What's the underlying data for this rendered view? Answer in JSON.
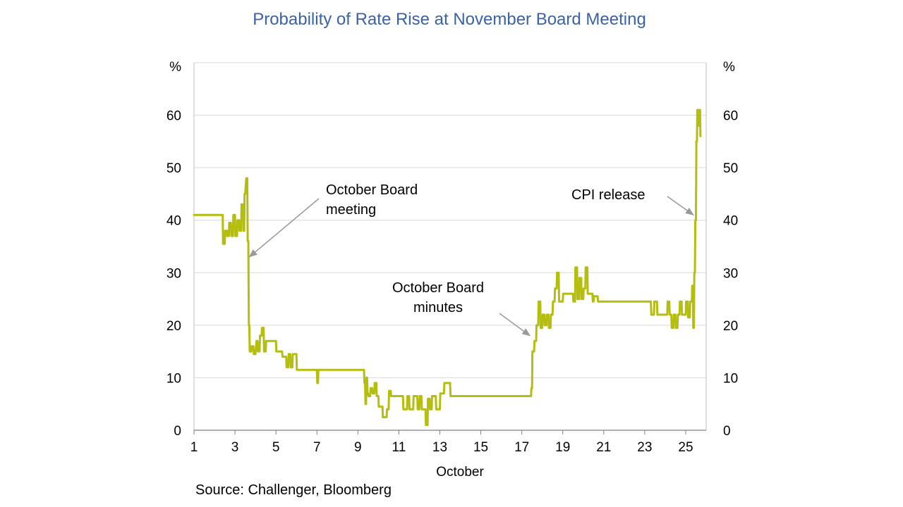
{
  "chart_data": {
    "type": "line",
    "title": "Probability of Rate Rise at November Board Meeting",
    "xlabel": "October",
    "ylabel_left": "%",
    "ylabel_right": "%",
    "xlim": [
      1,
      26
    ],
    "ylim": [
      0,
      70
    ],
    "x_ticks": [
      1,
      3,
      5,
      7,
      9,
      11,
      13,
      15,
      17,
      19,
      21,
      23,
      25
    ],
    "x_tick_labels": [
      "1",
      "3",
      "5",
      "7",
      "9",
      "11",
      "13",
      "15",
      "17",
      "19",
      "21",
      "23",
      "25"
    ],
    "y_ticks": [
      0,
      10,
      20,
      30,
      40,
      50,
      60
    ],
    "y_tick_labels": [
      "0",
      "10",
      "20",
      "30",
      "40",
      "50",
      "60"
    ],
    "grid": true,
    "color": "#b5bd0e",
    "series": [
      {
        "name": "Probability of rate rise",
        "x": [
          1,
          2.4,
          2.42,
          2.5,
          2.52,
          2.6,
          2.62,
          2.7,
          2.72,
          2.8,
          2.82,
          2.9,
          2.92,
          3.0,
          3.02,
          3.1,
          3.12,
          3.2,
          3.22,
          3.3,
          3.32,
          3.4,
          3.42,
          3.45,
          3.47,
          3.5,
          3.55,
          3.6,
          3.62,
          3.65,
          3.68,
          3.7,
          3.72,
          3.8,
          3.82,
          3.9,
          3.92,
          4.0,
          4.05,
          4.1,
          4.12,
          4.2,
          4.22,
          4.3,
          4.32,
          4.4,
          4.42,
          4.5,
          4.52,
          5.0,
          5.02,
          5.3,
          5.32,
          5.5,
          5.52,
          5.6,
          5.62,
          5.7,
          5.72,
          5.8,
          5.82,
          6.0,
          6.02,
          7.0,
          7.02,
          7.05,
          7.07,
          9.3,
          9.32,
          9.35,
          9.37,
          9.4,
          9.42,
          9.45,
          9.47,
          9.5,
          9.52,
          9.6,
          9.62,
          9.7,
          9.72,
          9.8,
          9.82,
          9.9,
          9.92,
          10.0,
          10.02,
          10.2,
          10.22,
          10.4,
          10.42,
          10.5,
          10.52,
          10.6,
          10.62,
          11.2,
          11.22,
          11.4,
          11.42,
          11.5,
          11.52,
          11.7,
          11.72,
          11.9,
          11.92,
          12.0,
          12.02,
          12.1,
          12.12,
          12.3,
          12.32,
          12.4,
          12.42,
          12.5,
          12.52,
          12.6,
          12.62,
          12.8,
          12.82,
          13.0,
          13.02,
          13.2,
          13.22,
          13.5,
          13.52,
          17.45,
          17.47,
          17.5,
          17.52,
          17.6,
          17.62,
          17.7,
          17.72,
          17.8,
          17.82,
          17.9,
          17.92,
          18.0,
          18.02,
          18.1,
          18.12,
          18.2,
          18.22,
          18.3,
          18.32,
          18.4,
          18.42,
          18.5,
          18.52,
          18.6,
          18.62,
          18.7,
          18.72,
          18.8,
          18.82,
          19.0,
          19.02,
          19.5,
          19.52,
          19.6,
          19.62,
          19.7,
          19.72,
          19.8,
          19.82,
          19.9,
          19.92,
          20.0,
          20.02,
          20.1,
          20.12,
          20.2,
          20.22,
          20.45,
          20.47,
          20.5,
          20.52,
          20.7,
          20.72,
          23.3,
          23.32,
          23.45,
          23.47,
          23.6,
          23.62,
          24.1,
          24.12,
          24.2,
          24.22,
          24.3,
          24.32,
          24.4,
          24.42,
          24.5,
          24.52,
          24.6,
          24.62,
          24.7,
          24.72,
          24.8,
          24.82,
          25.0,
          25.02,
          25.1,
          25.12,
          25.2,
          25.22,
          25.3,
          25.32,
          25.35,
          25.37,
          25.4,
          25.42,
          25.45,
          25.47,
          25.5,
          25.52,
          25.55,
          25.57,
          25.6,
          25.62,
          25.65,
          25.67,
          25.7,
          25.72
        ],
        "y": [
          41,
          41,
          35.5,
          35.5,
          38,
          38,
          37,
          37,
          39.5,
          39.5,
          37,
          37,
          41,
          41,
          37,
          37,
          40,
          40,
          38,
          38,
          43,
          43,
          38,
          38,
          45,
          45,
          48,
          48,
          36,
          36,
          20,
          20,
          15,
          15,
          16,
          16,
          14.5,
          14.5,
          17,
          17,
          15,
          15,
          18,
          18,
          19.5,
          19.5,
          15,
          15,
          17,
          17,
          15,
          15,
          14,
          14,
          12,
          12,
          14.5,
          14.5,
          12,
          12,
          14.5,
          14.5,
          11.5,
          11.5,
          9,
          9,
          11.5,
          11.5,
          9,
          9,
          5,
          5,
          10,
          10,
          7,
          7,
          6.5,
          6.5,
          8,
          8,
          7,
          7,
          9,
          9,
          6.5,
          6.5,
          4.5,
          4.5,
          2.5,
          2.5,
          4,
          4,
          7.5,
          7.5,
          6.5,
          6.5,
          4,
          4,
          6.5,
          6.5,
          4,
          4,
          6.5,
          6.5,
          4,
          4,
          6.5,
          6.5,
          4,
          4,
          1,
          1,
          6,
          6,
          4,
          4,
          6.5,
          6.5,
          4,
          4,
          7,
          7,
          9,
          9,
          6.5,
          6.5,
          8,
          8,
          15,
          15,
          17,
          17,
          20,
          20,
          24.5,
          24.5,
          19.5,
          19.5,
          22,
          22,
          20,
          20,
          22,
          22,
          19.5,
          19.5,
          22,
          22,
          24.5,
          24.5,
          27,
          27,
          30,
          30,
          24.5,
          24.5,
          26,
          26,
          24.5,
          24.5,
          31,
          31,
          25,
          25,
          29,
          29,
          25,
          25,
          27,
          27,
          31,
          31,
          26,
          26,
          24.5,
          24.5,
          25.5,
          25.5,
          24.5,
          24.5,
          22,
          22,
          24.5,
          24.5,
          22,
          22,
          24.5,
          24.5,
          22,
          22,
          19.5,
          19.5,
          22,
          22,
          19.5,
          19.5,
          22,
          22,
          24.5,
          24.5,
          22,
          22,
          24.5,
          24.5,
          21.5,
          21.5,
          24.5,
          24.5,
          27.5,
          27.5,
          19.5,
          19.5,
          30,
          30,
          40,
          40,
          55,
          55,
          61,
          61,
          58,
          58,
          61,
          61,
          56
        ]
      }
    ],
    "annotations": [
      {
        "lines": [
          "October Board",
          "meeting"
        ],
        "arrow_to": {
          "x": 3.7,
          "y": 33
        }
      },
      {
        "lines": [
          "October Board",
          "minutes"
        ],
        "arrow_to": {
          "x": 17.4,
          "y": 18
        }
      },
      {
        "lines": [
          "CPI release"
        ],
        "arrow_to": {
          "x": 25.38,
          "y": 41
        }
      }
    ],
    "source": "Source: Challenger, Bloomberg"
  }
}
